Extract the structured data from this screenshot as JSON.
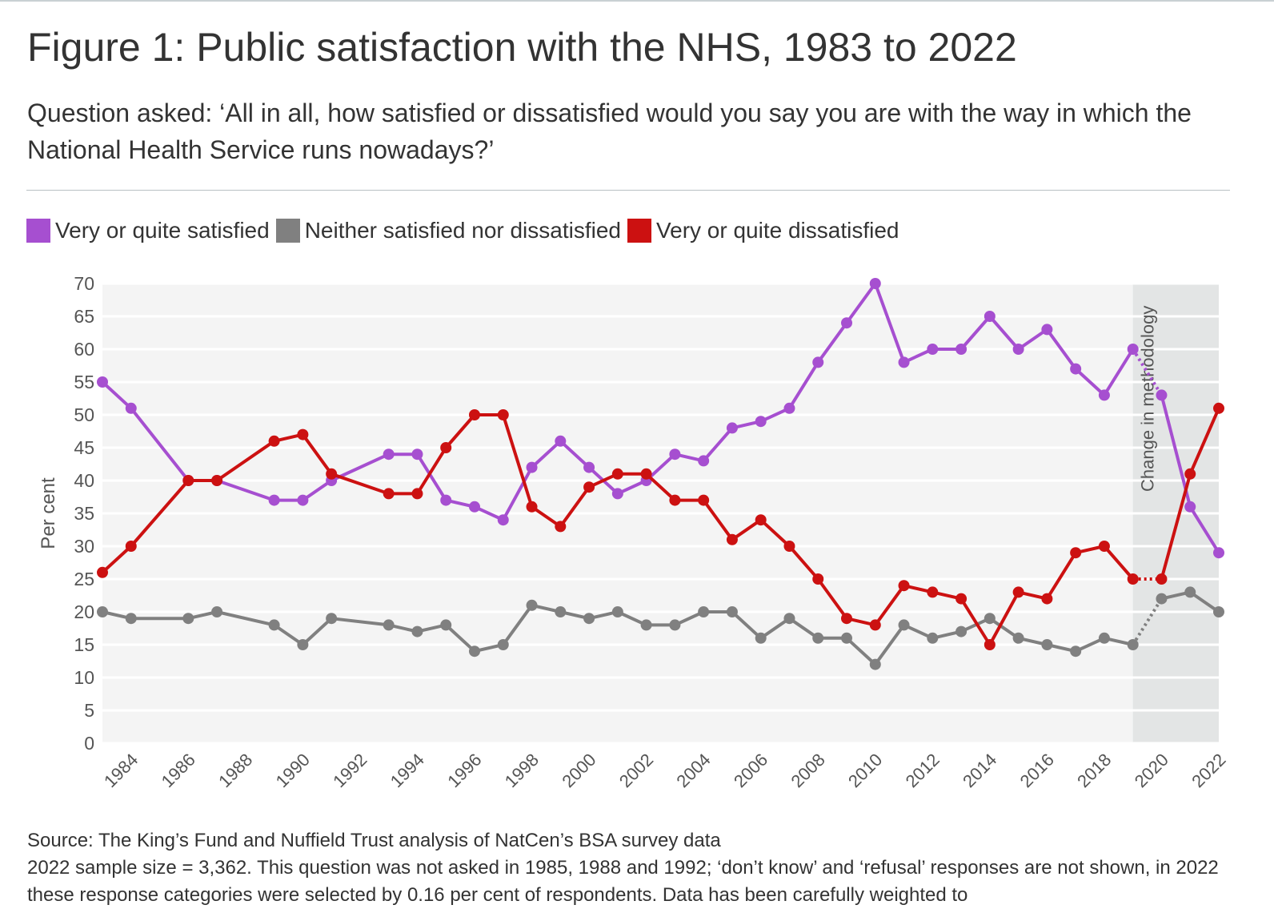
{
  "header": {
    "title": "Figure 1: Public satisfaction with the NHS, 1983 to 2022",
    "subtitle": "Question asked: ‘All in all, how satisfied or dissatisfied would you say you are with the way in which the National Health Service runs nowadays?’"
  },
  "legend": {
    "items": [
      {
        "label": "Very or quite satisfied",
        "color": "#a64fd0"
      },
      {
        "label": "Neither satisfied nor dissatisfied",
        "color": "#808080"
      },
      {
        "label": "Very or quite dissatisfied",
        "color": "#cc1111"
      }
    ]
  },
  "footer": {
    "source": "Source: The King’s Fund and Nuffield Trust analysis of NatCen’s BSA survey data",
    "note": "2022 sample size = 3,362. This question was not asked in 1985, 1988 and 1992; ‘don’t know’ and ‘refusal’ responses are not shown, in 2022 these response categories were selected by 0.16 per cent of respondents. Data has been carefully weighted to"
  },
  "chart_data": {
    "type": "line",
    "title": "Figure 1: Public satisfaction with the NHS, 1983 to 2022",
    "xlabel": "",
    "ylabel": "Per cent",
    "xlim": [
      1983,
      2022
    ],
    "ylim": [
      0,
      70
    ],
    "yticks": [
      0,
      5,
      10,
      15,
      20,
      25,
      30,
      35,
      40,
      45,
      50,
      55,
      60,
      65,
      70
    ],
    "xticks": [
      1984,
      1986,
      1988,
      1990,
      1992,
      1994,
      1996,
      1998,
      2000,
      2002,
      2004,
      2006,
      2008,
      2010,
      2012,
      2014,
      2016,
      2018,
      2020,
      2022
    ],
    "grid": true,
    "legend_position": "top-left",
    "annotation": {
      "label": "Change in methodology",
      "x_start": 2019,
      "x_end": 2022
    },
    "method_change_after": 2019,
    "series": [
      {
        "name": "Very or quite satisfied",
        "color": "#a64fd0",
        "points": [
          [
            1983,
            55
          ],
          [
            1984,
            51
          ],
          [
            1986,
            40
          ],
          [
            1987,
            40
          ],
          [
            1989,
            37
          ],
          [
            1990,
            37
          ],
          [
            1991,
            40
          ],
          [
            1993,
            44
          ],
          [
            1994,
            44
          ],
          [
            1995,
            37
          ],
          [
            1996,
            36
          ],
          [
            1997,
            34
          ],
          [
            1998,
            42
          ],
          [
            1999,
            46
          ],
          [
            2000,
            42
          ],
          [
            2001,
            38
          ],
          [
            2002,
            40
          ],
          [
            2003,
            44
          ],
          [
            2004,
            43
          ],
          [
            2005,
            48
          ],
          [
            2006,
            49
          ],
          [
            2007,
            51
          ],
          [
            2008,
            58
          ],
          [
            2009,
            64
          ],
          [
            2010,
            70
          ],
          [
            2011,
            58
          ],
          [
            2012,
            60
          ],
          [
            2013,
            60
          ],
          [
            2014,
            65
          ],
          [
            2015,
            60
          ],
          [
            2016,
            63
          ],
          [
            2017,
            57
          ],
          [
            2018,
            53
          ],
          [
            2019,
            60
          ],
          [
            2020,
            53
          ],
          [
            2021,
            36
          ],
          [
            2022,
            29
          ]
        ]
      },
      {
        "name": "Neither satisfied nor dissatisfied",
        "color": "#808080",
        "points": [
          [
            1983,
            20
          ],
          [
            1984,
            19
          ],
          [
            1986,
            19
          ],
          [
            1987,
            20
          ],
          [
            1989,
            18
          ],
          [
            1990,
            15
          ],
          [
            1991,
            19
          ],
          [
            1993,
            18
          ],
          [
            1994,
            17
          ],
          [
            1995,
            18
          ],
          [
            1996,
            14
          ],
          [
            1997,
            15
          ],
          [
            1998,
            21
          ],
          [
            1999,
            20
          ],
          [
            2000,
            19
          ],
          [
            2001,
            20
          ],
          [
            2002,
            18
          ],
          [
            2003,
            18
          ],
          [
            2004,
            20
          ],
          [
            2005,
            20
          ],
          [
            2006,
            16
          ],
          [
            2007,
            19
          ],
          [
            2008,
            16
          ],
          [
            2009,
            16
          ],
          [
            2010,
            12
          ],
          [
            2011,
            18
          ],
          [
            2012,
            16
          ],
          [
            2013,
            17
          ],
          [
            2014,
            19
          ],
          [
            2015,
            16
          ],
          [
            2016,
            15
          ],
          [
            2017,
            14
          ],
          [
            2018,
            16
          ],
          [
            2019,
            15
          ],
          [
            2020,
            22
          ],
          [
            2021,
            23
          ],
          [
            2022,
            20
          ]
        ]
      },
      {
        "name": "Very or quite dissatisfied",
        "color": "#cc1111",
        "points": [
          [
            1983,
            26
          ],
          [
            1984,
            30
          ],
          [
            1986,
            40
          ],
          [
            1987,
            40
          ],
          [
            1989,
            46
          ],
          [
            1990,
            47
          ],
          [
            1991,
            41
          ],
          [
            1993,
            38
          ],
          [
            1994,
            38
          ],
          [
            1995,
            45
          ],
          [
            1996,
            50
          ],
          [
            1997,
            50
          ],
          [
            1998,
            36
          ],
          [
            1999,
            33
          ],
          [
            2000,
            39
          ],
          [
            2001,
            41
          ],
          [
            2002,
            41
          ],
          [
            2003,
            37
          ],
          [
            2004,
            37
          ],
          [
            2005,
            31
          ],
          [
            2006,
            34
          ],
          [
            2007,
            30
          ],
          [
            2008,
            25
          ],
          [
            2009,
            19
          ],
          [
            2010,
            18
          ],
          [
            2011,
            24
          ],
          [
            2012,
            23
          ],
          [
            2013,
            22
          ],
          [
            2014,
            15
          ],
          [
            2015,
            23
          ],
          [
            2016,
            22
          ],
          [
            2017,
            29
          ],
          [
            2018,
            30
          ],
          [
            2019,
            25
          ],
          [
            2020,
            25
          ],
          [
            2021,
            41
          ],
          [
            2022,
            51
          ]
        ]
      }
    ]
  }
}
